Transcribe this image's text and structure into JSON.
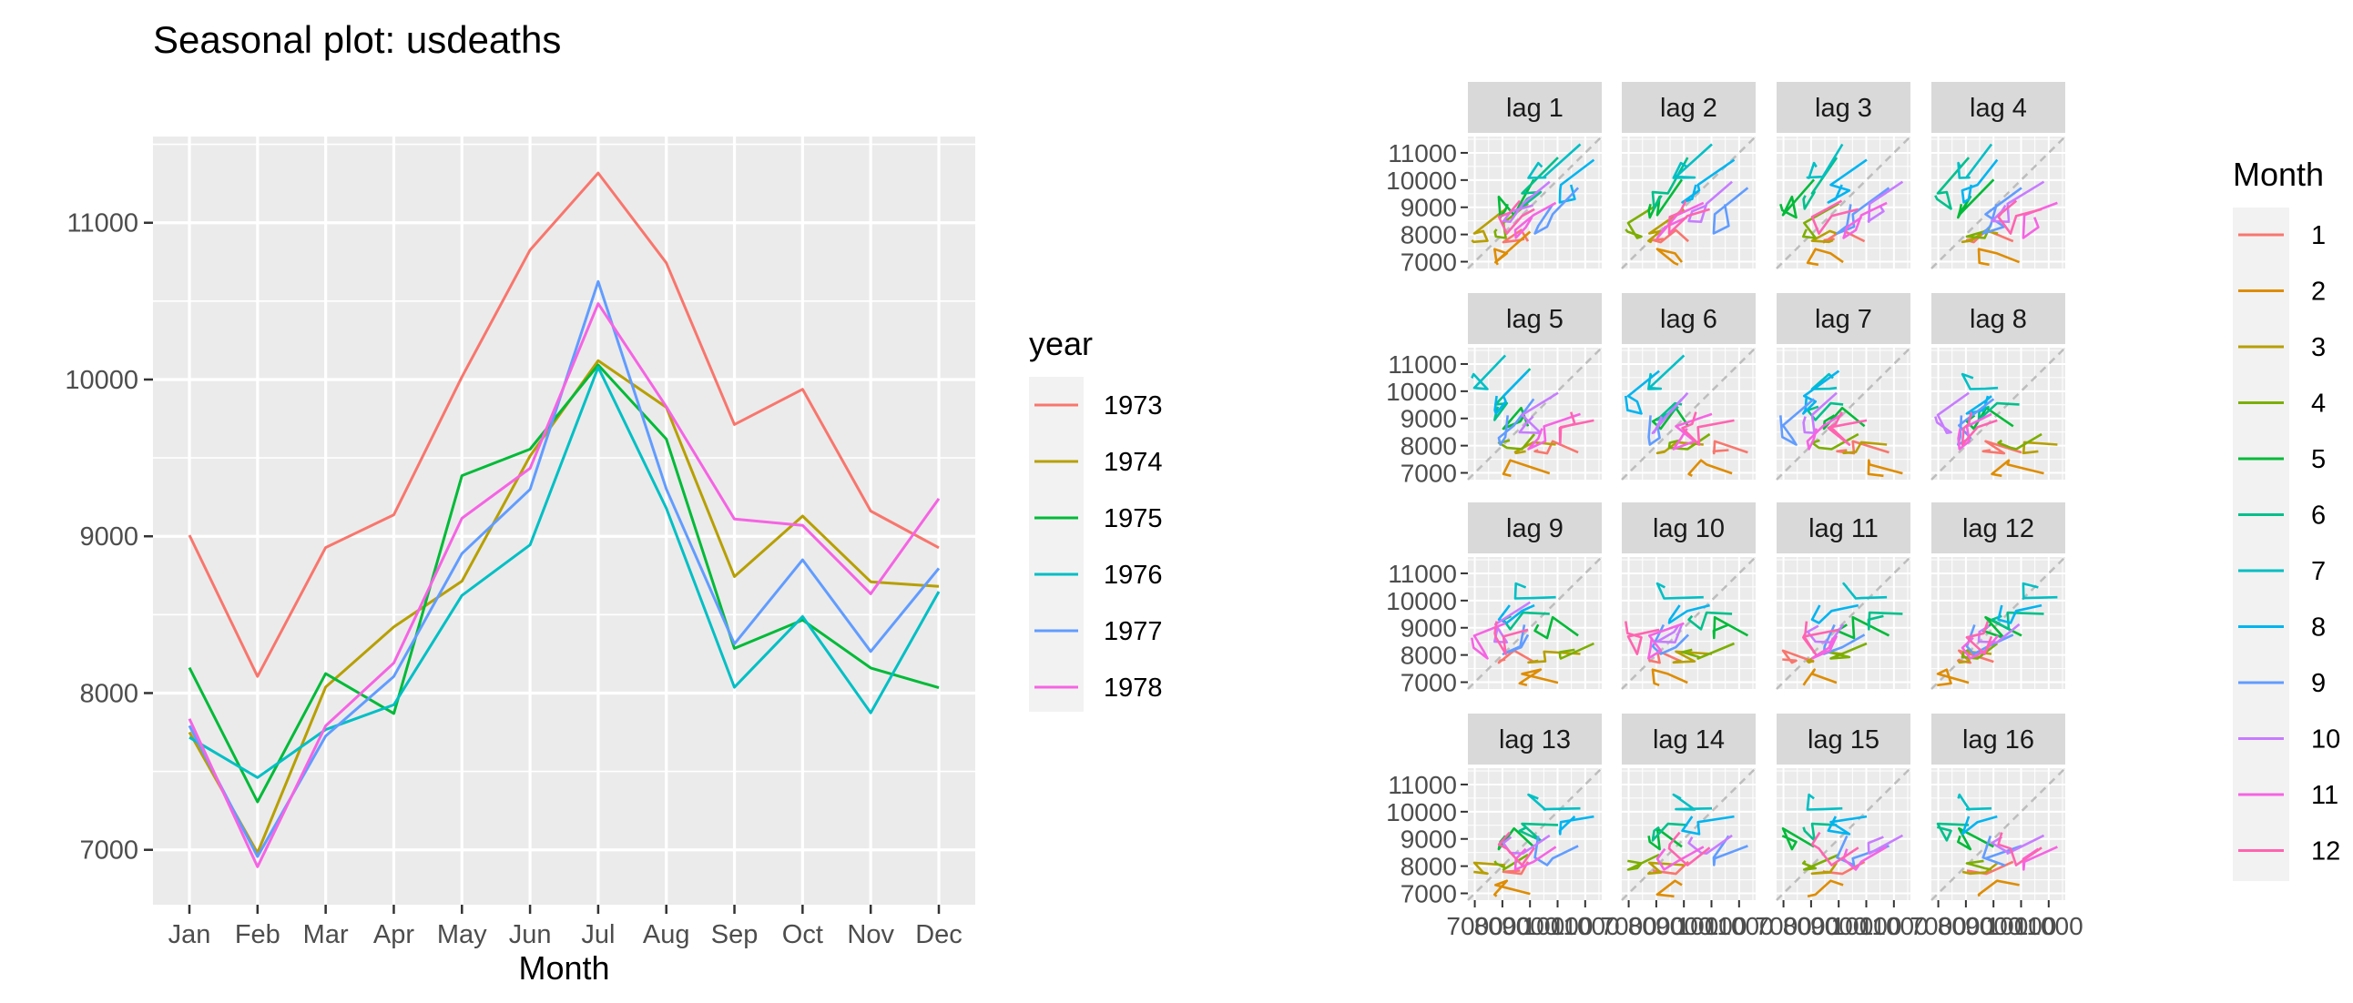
{
  "figure": {
    "colors": {
      "panel_bg": "#EBEBEB",
      "grid": "#FFFFFF",
      "strip_bg": "#D9D9D9",
      "ref_line": "#BDBDBD",
      "axis_text": "#4D4D4D",
      "title_text": "#000000"
    }
  },
  "chart_data": [
    {
      "type": "line",
      "title": "Seasonal plot: usdeaths",
      "xlabel": "Month",
      "ylabel": "",
      "categories": [
        "Jan",
        "Feb",
        "Mar",
        "Apr",
        "May",
        "Jun",
        "Jul",
        "Aug",
        "Sep",
        "Oct",
        "Nov",
        "Dec"
      ],
      "ylim": [
        6650,
        11550
      ],
      "yticks": [
        7000,
        8000,
        9000,
        10000,
        11000
      ],
      "ytick_labels": [
        "7000",
        "8000",
        "9000",
        "10000",
        "11000"
      ],
      "grid": true,
      "legend": {
        "title": "year",
        "position": "right"
      },
      "series": [
        {
          "name": "1973",
          "color": "#F8766D",
          "values": [
            9007,
            8106,
            8928,
            9137,
            10017,
            10826,
            11317,
            10744,
            9713,
            9938,
            9161,
            8927
          ]
        },
        {
          "name": "1974",
          "color": "#B79F00",
          "values": [
            7750,
            6981,
            8038,
            8422,
            8714,
            9512,
            10120,
            9823,
            8743,
            9129,
            8710,
            8680
          ]
        },
        {
          "name": "1975",
          "color": "#00BA38",
          "values": [
            8162,
            7306,
            8124,
            7870,
            9387,
            9556,
            10093,
            9620,
            8285,
            8466,
            8160,
            8034
          ]
        },
        {
          "name": "1976",
          "color": "#00BFC4",
          "values": [
            7717,
            7461,
            7767,
            7925,
            8623,
            8945,
            10078,
            9179,
            8037,
            8488,
            7874,
            8647
          ]
        },
        {
          "name": "1977",
          "color": "#619CFF",
          "values": [
            7792,
            6957,
            7726,
            8106,
            8890,
            9299,
            10625,
            9302,
            8314,
            8850,
            8265,
            8796
          ]
        },
        {
          "name": "1978",
          "color": "#F564E3",
          "values": [
            7836,
            6892,
            7791,
            8192,
            9115,
            9434,
            10484,
            9827,
            9110,
            9070,
            8633,
            9240
          ]
        }
      ]
    },
    {
      "type": "scatter",
      "title": "",
      "xlabel": "",
      "ylabel": "",
      "panels": [
        "lag 1",
        "lag 2",
        "lag 3",
        "lag 4",
        "lag 5",
        "lag 6",
        "lag 7",
        "lag 8",
        "lag 9",
        "lag 10",
        "lag 11",
        "lag 12",
        "lag 13",
        "lag 14",
        "lag 15",
        "lag 16"
      ],
      "lim": [
        6750,
        11600
      ],
      "yticks": [
        7000,
        8000,
        9000,
        10000,
        11000
      ],
      "ytick_labels": [
        "7000",
        "8000",
        "9000",
        "10000",
        "11000"
      ],
      "xtick_labels": [
        "7000",
        "8000",
        "9000",
        "10000",
        "11000"
      ],
      "reference_line": "y = x (dashed)",
      "grid": true,
      "legend": {
        "title": "Month",
        "position": "right",
        "entries": [
          "1",
          "2",
          "3",
          "4",
          "5",
          "6",
          "7",
          "8",
          "9",
          "10",
          "11",
          "12"
        ],
        "colors": [
          "#F8766D",
          "#DE8C00",
          "#B79F00",
          "#7CAE00",
          "#00BA38",
          "#00C08B",
          "#00BFC4",
          "#00B4F0",
          "#619CFF",
          "#C77CFF",
          "#F564E3",
          "#FF64B0"
        ]
      },
      "series_values": [
        9007,
        8106,
        8928,
        9137,
        10017,
        10826,
        11317,
        10744,
        9713,
        9938,
        9161,
        8927,
        7750,
        6981,
        8038,
        8422,
        8714,
        9512,
        10120,
        9823,
        8743,
        9129,
        8710,
        8680,
        8162,
        7306,
        8124,
        7870,
        9387,
        9556,
        10093,
        9620,
        8285,
        8466,
        8160,
        8034,
        7717,
        7461,
        7767,
        7925,
        8623,
        8945,
        10078,
        9179,
        8037,
        8488,
        7874,
        8647,
        7792,
        6957,
        7726,
        8106,
        8890,
        9299,
        10625,
        9302,
        8314,
        8850,
        8265,
        8796,
        7836,
        6892,
        7791,
        8192,
        9115,
        9434,
        10484,
        9827,
        9110,
        9070,
        8633,
        9240
      ]
    }
  ]
}
